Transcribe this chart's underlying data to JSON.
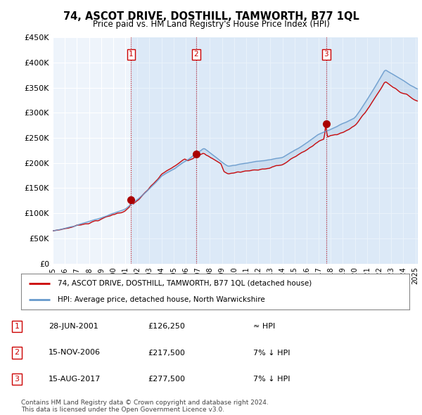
{
  "title": "74, ASCOT DRIVE, DOSTHILL, TAMWORTH, B77 1QL",
  "subtitle": "Price paid vs. HM Land Registry's House Price Index (HPI)",
  "xlim_start": 1995.0,
  "xlim_end": 2025.2,
  "ylim_min": 0,
  "ylim_max": 450000,
  "yticks": [
    0,
    50000,
    100000,
    150000,
    200000,
    250000,
    300000,
    350000,
    400000,
    450000
  ],
  "ytick_labels": [
    "£0",
    "£50K",
    "£100K",
    "£150K",
    "£200K",
    "£250K",
    "£300K",
    "£350K",
    "£400K",
    "£450K"
  ],
  "xticks": [
    1995,
    1996,
    1997,
    1998,
    1999,
    2000,
    2001,
    2002,
    2003,
    2004,
    2005,
    2006,
    2007,
    2008,
    2009,
    2010,
    2011,
    2012,
    2013,
    2014,
    2015,
    2016,
    2017,
    2018,
    2019,
    2020,
    2021,
    2022,
    2023,
    2024,
    2025
  ],
  "sale_dates": [
    2001.487,
    2006.872,
    2017.619
  ],
  "sale_prices": [
    126250,
    217500,
    277500
  ],
  "sale_labels": [
    "1",
    "2",
    "3"
  ],
  "vline_color": "#cc0000",
  "sale_dot_color": "#aa0000",
  "hpi_line_color": "#6699cc",
  "price_line_color": "#cc0000",
  "shade_color": "#ddeeff",
  "legend_label_price": "74, ASCOT DRIVE, DOSTHILL, TAMWORTH, B77 1QL (detached house)",
  "legend_label_hpi": "HPI: Average price, detached house, North Warwickshire",
  "table_rows": [
    {
      "num": "1",
      "date": "28-JUN-2001",
      "price": "£126,250",
      "relation": "≈ HPI"
    },
    {
      "num": "2",
      "date": "15-NOV-2006",
      "price": "£217,500",
      "relation": "7% ↓ HPI"
    },
    {
      "num": "3",
      "date": "15-AUG-2017",
      "price": "£277,500",
      "relation": "7% ↓ HPI"
    }
  ],
  "footnote": "Contains HM Land Registry data © Crown copyright and database right 2024.\nThis data is licensed under the Open Government Licence v3.0.",
  "bg_color": "#ffffff",
  "plot_bg_color": "#eef4fb",
  "grid_color": "#ffffff"
}
